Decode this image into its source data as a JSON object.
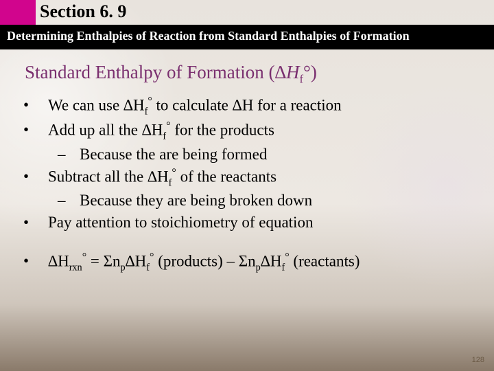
{
  "header": {
    "section_label": "Section 6. 9",
    "subtitle": "Determining Enthalpies of Reaction from Standard Enthalpies of Formation"
  },
  "subheading": {
    "prefix": "Standard Enthalpy of Formation (",
    "delta": "∆",
    "H": "H",
    "sub_f": "f",
    "degree": "°",
    "suffix": ")"
  },
  "bullets": {
    "b1_pre": "We can use ∆H",
    "b1_sub": "f",
    "b1_deg": "°",
    "b1_post": " to calculate ∆H for a reaction",
    "b2_pre": "Add up all the ∆H",
    "b2_sub": "f",
    "b2_deg": "°",
    "b2_post": " for the products",
    "b2_sub1": "Because the are being formed",
    "b3_pre": "Subtract all the ∆H",
    "b3_sub": "f",
    "b3_deg": "°",
    "b3_post": " of the reactants",
    "b3_sub1": "Because they are being broken down",
    "b4": "Pay attention to stoichiometry of equation",
    "eq_1": "∆H",
    "eq_rxn": "rxn",
    "eq_deg1": "°",
    "eq_2": " = Σn",
    "eq_p1": "p",
    "eq_3": "∆H",
    "eq_f1": "f",
    "eq_deg2": "°",
    "eq_4": " (products) – Σn",
    "eq_p2": "p",
    "eq_5": "∆H",
    "eq_f2": "f",
    "eq_deg3": "°",
    "eq_6": " (reactants)"
  },
  "page_number": "128",
  "colors": {
    "accent": "#d1058d",
    "subheading": "#7a2f6f"
  }
}
